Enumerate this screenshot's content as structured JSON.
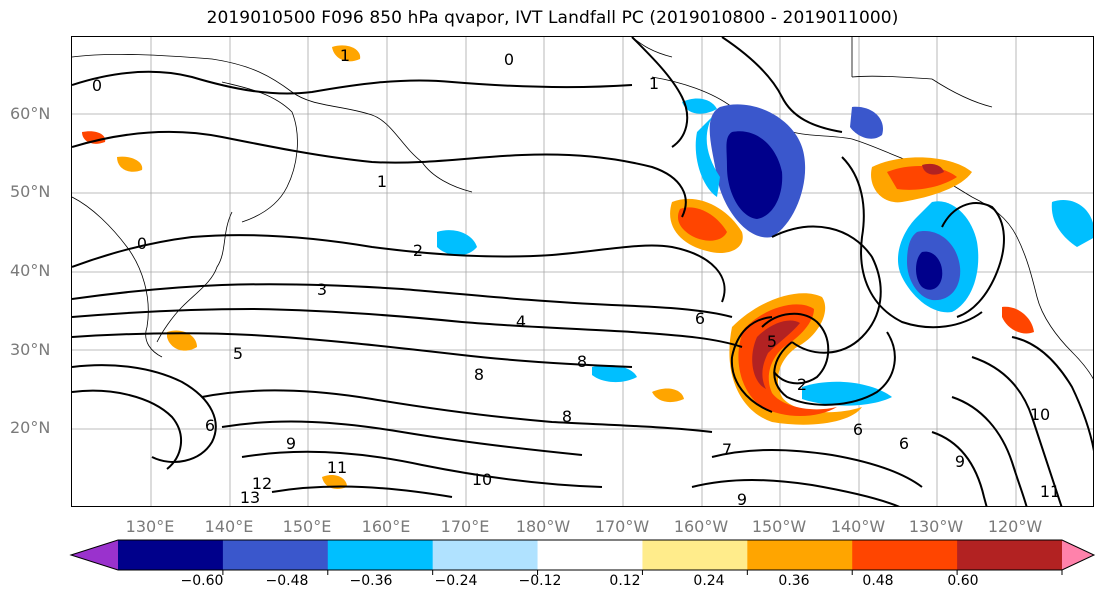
{
  "title": "2019010500 F096 850 hPa qvapor, IVT Landfall PC (2019010800 - 2019011000)",
  "axes": {
    "lat_labels": [
      "60°N",
      "50°N",
      "40°N",
      "30°N",
      "20°N"
    ],
    "lon_labels": [
      "130°E",
      "140°E",
      "150°E",
      "160°E",
      "170°E",
      "180°W",
      "170°W",
      "160°W",
      "150°W",
      "140°W",
      "130°W",
      "120°W"
    ]
  },
  "contour_labels": [
    "0",
    "0",
    "1",
    "1",
    "1",
    "0",
    "2",
    "3",
    "4",
    "5",
    "6",
    "6",
    "8",
    "8",
    "2",
    "5",
    "8",
    "10",
    "11",
    "12",
    "13",
    "9",
    "6",
    "7",
    "10",
    "11",
    "9",
    "6",
    "9"
  ],
  "colorbar": {
    "ticks": [
      "−0.60",
      "−0.48",
      "−0.36",
      "−0.24",
      "−0.12",
      "0.12",
      "0.24",
      "0.36",
      "0.48",
      "0.60"
    ],
    "colors": [
      "#9a32cd",
      "#00008b",
      "#3a57cc",
      "#00bfff",
      "#b0e2ff",
      "#ffffff",
      "#ffec8b",
      "#ffa500",
      "#ff4500",
      "#b22222",
      "#ff82ab"
    ]
  }
}
